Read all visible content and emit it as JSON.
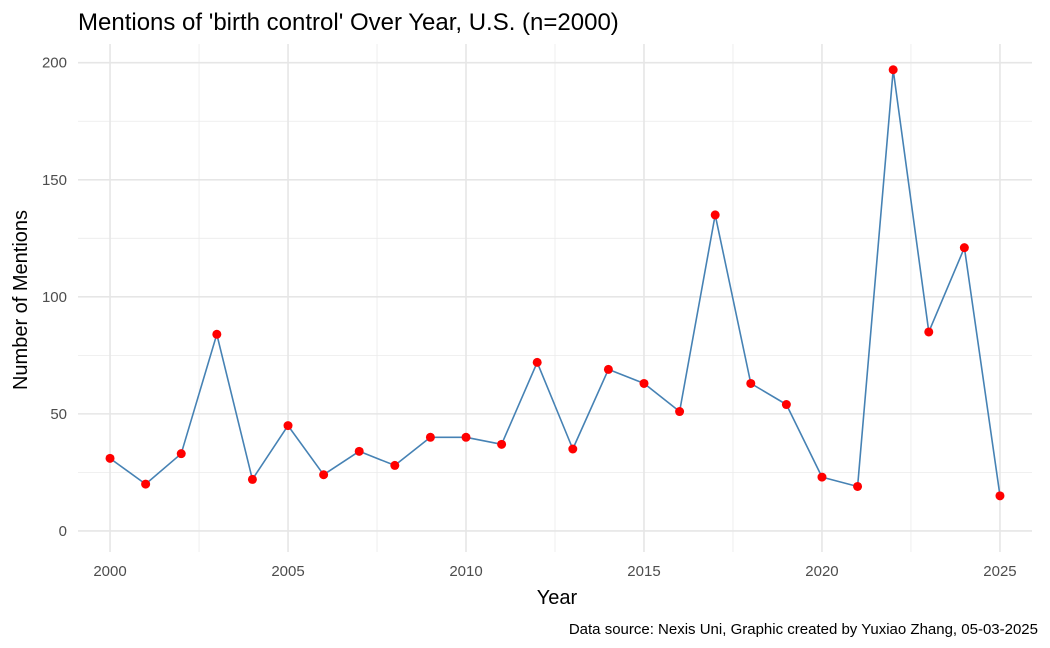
{
  "chart_data": {
    "type": "line",
    "title": "Mentions of 'birth control' Over Year, U.S. (n=2000)",
    "xlabel": "Year",
    "ylabel": "Number of Mentions",
    "caption": "Data source: Nexis Uni, Graphic created by Yuxiao Zhang, 05-03-2025",
    "xlim": [
      1999.1,
      2025.9
    ],
    "ylim": [
      -9.0,
      208.0
    ],
    "x_ticks": [
      2000,
      2005,
      2010,
      2015,
      2020,
      2025
    ],
    "y_ticks": [
      0,
      50,
      100,
      150,
      200
    ],
    "grid": true,
    "legend": "none",
    "line_color": "#4682b4",
    "point_color": "#ff0000",
    "x": [
      2000,
      2001,
      2002,
      2003,
      2004,
      2005,
      2006,
      2007,
      2008,
      2009,
      2010,
      2011,
      2012,
      2013,
      2014,
      2015,
      2016,
      2017,
      2018,
      2019,
      2020,
      2021,
      2022,
      2023,
      2024,
      2025
    ],
    "values": [
      31,
      20,
      33,
      84,
      22,
      45,
      24,
      34,
      28,
      40,
      40,
      37,
      72,
      35,
      69,
      63,
      51,
      135,
      63,
      54,
      23,
      19,
      197,
      85,
      121,
      15
    ]
  }
}
